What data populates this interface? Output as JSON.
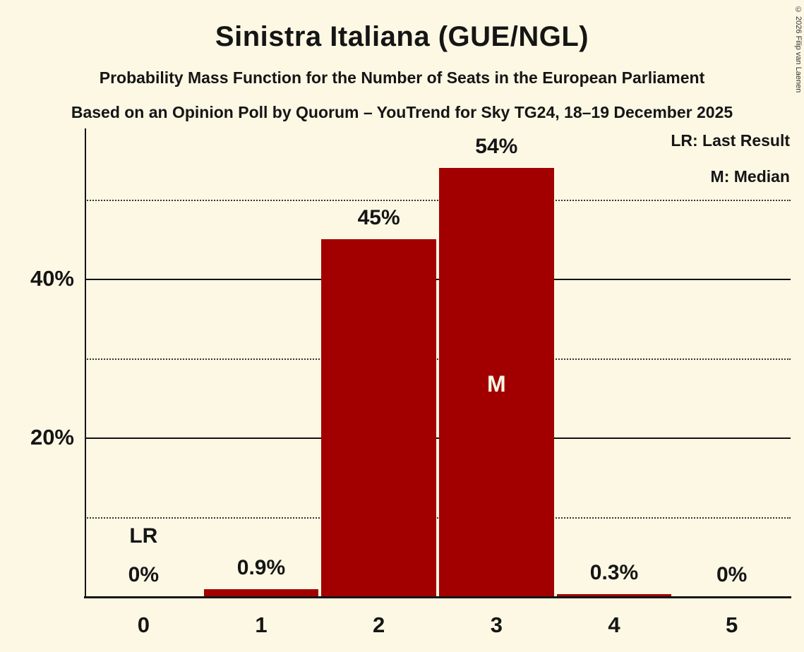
{
  "page": {
    "copyright": "© 2026 Filip van Laenen"
  },
  "chart_data": {
    "type": "bar",
    "title": "Sinistra Italiana (GUE/NGL)",
    "subtitle": "Probability Mass Function for the Number of Seats in the European Parliament",
    "source_line": "Based on an Opinion Poll by Quorum – YouTrend for Sky TG24, 18–19 December 2025",
    "categories": [
      "0",
      "1",
      "2",
      "3",
      "4",
      "5"
    ],
    "values": [
      0,
      0.9,
      45,
      54,
      0.3,
      0
    ],
    "value_labels": [
      "0%",
      "0.9%",
      "45%",
      "54%",
      "0.3%",
      "0%"
    ],
    "ylim": [
      0,
      59
    ],
    "yticks": [
      {
        "value": 20,
        "label": "20%"
      },
      {
        "value": 40,
        "label": "40%"
      }
    ],
    "gridlines": {
      "solid": [
        20,
        40
      ],
      "dotted": [
        10,
        30,
        50
      ]
    },
    "legend": {
      "lr": "LR: Last Result",
      "m": "M: Median"
    },
    "legend_position": "top-right",
    "markers": {
      "last_result_index": 0,
      "last_result_label": "LR",
      "median_index": 3,
      "median_label": "M"
    },
    "colors": {
      "bar": "#a20000",
      "background": "#fcf8e4",
      "text": "#151515",
      "median_text": "#fcf8e4"
    }
  }
}
